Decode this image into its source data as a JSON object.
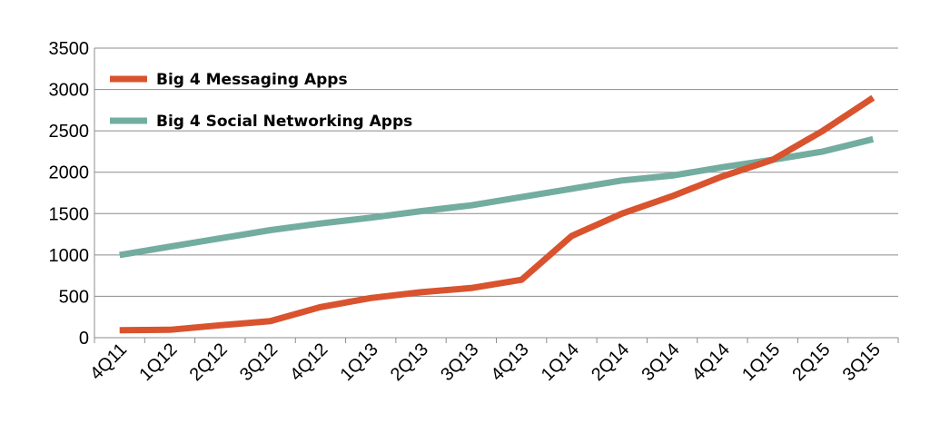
{
  "chart_data": {
    "type": "line",
    "title": "",
    "xlabel": "",
    "ylabel": "",
    "categories": [
      "4Q11",
      "1Q12",
      "2Q12",
      "3Q12",
      "4Q12",
      "1Q13",
      "2Q13",
      "3Q13",
      "4Q13",
      "1Q14",
      "2Q14",
      "3Q14",
      "4Q14",
      "1Q15",
      "2Q15",
      "3Q15"
    ],
    "ylim": [
      0,
      3500
    ],
    "yticks": [
      0,
      500,
      1000,
      1500,
      2000,
      2500,
      3000,
      3500
    ],
    "grid": "horizontal",
    "legend_position": "top-left",
    "series": [
      {
        "name": "Big 4 Messaging Apps",
        "color": "#d9532f",
        "values": [
          90,
          95,
          150,
          200,
          370,
          480,
          550,
          600,
          700,
          1230,
          1500,
          1710,
          1950,
          2150,
          2500,
          2900
        ]
      },
      {
        "name": "Big 4 Social Networking Apps",
        "color": "#72ada0",
        "values": [
          1000,
          1100,
          1200,
          1300,
          1380,
          1450,
          1530,
          1600,
          1700,
          1800,
          1900,
          1960,
          2060,
          2150,
          2250,
          2400
        ]
      }
    ]
  }
}
